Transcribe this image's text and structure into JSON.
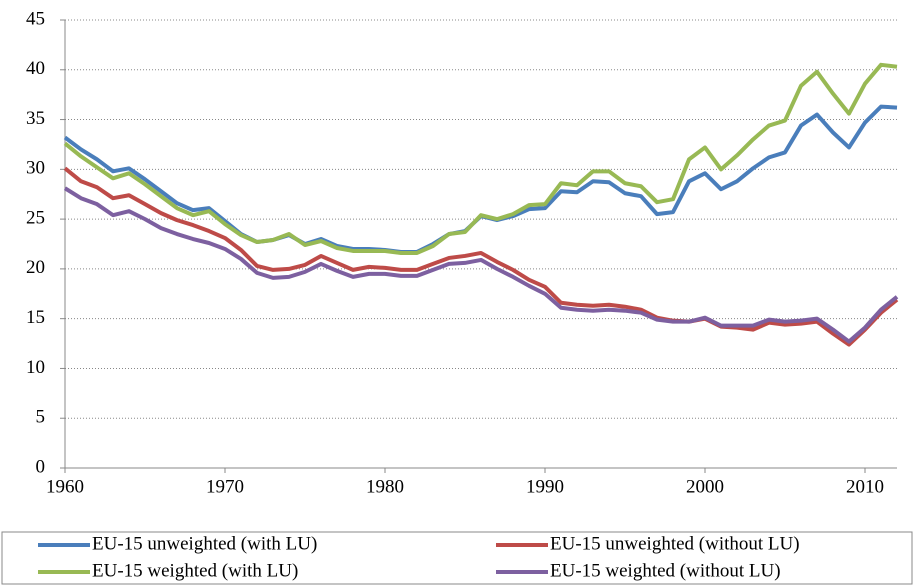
{
  "chart_data": {
    "type": "line",
    "x": [
      1960,
      1961,
      1962,
      1963,
      1964,
      1965,
      1966,
      1967,
      1968,
      1969,
      1970,
      1971,
      1972,
      1973,
      1974,
      1975,
      1976,
      1977,
      1978,
      1979,
      1980,
      1981,
      1982,
      1983,
      1984,
      1985,
      1986,
      1987,
      1988,
      1989,
      1990,
      1991,
      1992,
      1993,
      1994,
      1995,
      1996,
      1997,
      1998,
      1999,
      2000,
      2001,
      2002,
      2003,
      2004,
      2005,
      2006,
      2007,
      2008,
      2009,
      2010,
      2011,
      2012
    ],
    "xlim": [
      1960,
      2012
    ],
    "xticks": [
      1960,
      1970,
      1980,
      1990,
      2000,
      2010
    ],
    "ylim": [
      0,
      45
    ],
    "yticks": [
      0,
      5,
      10,
      15,
      20,
      25,
      30,
      35,
      40,
      45
    ],
    "grid": true,
    "legend": "bottom",
    "series": [
      {
        "name": "EU-15 unweighted (with LU)",
        "color": "#4a7ebb",
        "values": [
          33.2,
          32.0,
          31.0,
          29.8,
          30.1,
          29.0,
          27.8,
          26.6,
          25.9,
          26.1,
          24.8,
          23.5,
          22.7,
          22.9,
          23.4,
          22.5,
          23.0,
          22.3,
          22.0,
          22.0,
          21.9,
          21.7,
          21.7,
          22.5,
          23.5,
          23.8,
          25.3,
          24.9,
          25.3,
          26.0,
          26.1,
          27.8,
          27.7,
          28.8,
          28.7,
          27.6,
          27.3,
          25.5,
          25.7,
          28.8,
          29.6,
          28.0,
          28.8,
          30.1,
          31.2,
          31.7,
          34.4,
          35.5,
          33.7,
          32.2,
          34.7,
          36.3,
          36.2
        ]
      },
      {
        "name": "EU-15 unweighted (without LU)",
        "color": "#be4b48",
        "values": [
          30.1,
          28.8,
          28.2,
          27.1,
          27.4,
          26.5,
          25.6,
          24.9,
          24.4,
          23.8,
          23.1,
          21.9,
          20.3,
          19.9,
          20.0,
          20.4,
          21.3,
          20.6,
          19.9,
          20.2,
          20.1,
          19.9,
          19.9,
          20.5,
          21.1,
          21.3,
          21.6,
          20.7,
          19.9,
          18.9,
          18.2,
          16.6,
          16.4,
          16.3,
          16.4,
          16.2,
          15.9,
          15.1,
          14.8,
          14.7,
          15.0,
          14.2,
          14.1,
          13.9,
          14.6,
          14.4,
          14.5,
          14.7,
          13.5,
          12.4,
          13.9,
          15.6,
          16.9
        ]
      },
      {
        "name": "EU-15 weighted (with LU)",
        "color": "#98b954",
        "values": [
          32.6,
          31.3,
          30.2,
          29.1,
          29.6,
          28.5,
          27.3,
          26.1,
          25.4,
          25.8,
          24.5,
          23.4,
          22.7,
          22.9,
          23.5,
          22.4,
          22.8,
          22.1,
          21.8,
          21.8,
          21.8,
          21.6,
          21.6,
          22.3,
          23.5,
          23.7,
          25.4,
          25.0,
          25.5,
          26.4,
          26.5,
          28.6,
          28.4,
          29.8,
          29.8,
          28.6,
          28.3,
          26.7,
          27.0,
          31.0,
          32.2,
          30.0,
          31.4,
          33.0,
          34.4,
          34.9,
          38.4,
          39.8,
          37.6,
          35.6,
          38.6,
          40.5,
          40.3
        ]
      },
      {
        "name": "EU-15 weighted (without LU)",
        "color": "#7d60a0",
        "values": [
          28.1,
          27.1,
          26.5,
          25.4,
          25.8,
          25.0,
          24.1,
          23.5,
          23.0,
          22.6,
          22.0,
          21.0,
          19.6,
          19.1,
          19.2,
          19.7,
          20.5,
          19.8,
          19.2,
          19.5,
          19.5,
          19.3,
          19.3,
          19.9,
          20.5,
          20.6,
          20.9,
          20.0,
          19.2,
          18.3,
          17.5,
          16.1,
          15.9,
          15.8,
          15.9,
          15.8,
          15.6,
          14.9,
          14.7,
          14.7,
          15.1,
          14.3,
          14.3,
          14.3,
          14.9,
          14.7,
          14.8,
          15.0,
          13.9,
          12.7,
          14.1,
          15.9,
          17.2
        ]
      }
    ]
  }
}
